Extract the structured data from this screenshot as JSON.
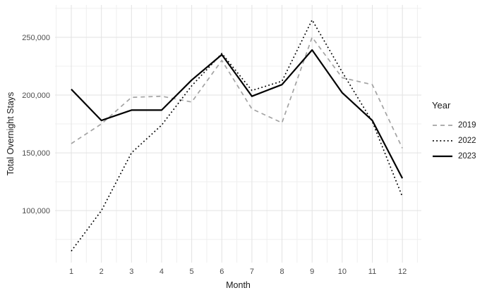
{
  "chart_data": {
    "type": "line",
    "title": "",
    "xlabel": "Month",
    "ylabel": "Total Overnight Stays",
    "legend_title": "Year",
    "legend_position": "right",
    "grid": true,
    "x": [
      1,
      2,
      3,
      4,
      5,
      6,
      7,
      8,
      9,
      10,
      11,
      12
    ],
    "x_tick_labels": [
      "1",
      "2",
      "3",
      "4",
      "5",
      "6",
      "7",
      "8",
      "9",
      "10",
      "11",
      "12"
    ],
    "xlim": [
      0.46,
      12.63
    ],
    "ylim": [
      55000,
      278000
    ],
    "y_major_ticks": [
      100000,
      150000,
      200000,
      250000
    ],
    "y_tick_labels": [
      "100,000",
      "150,000",
      "200,000",
      "250,000"
    ],
    "y_minor_ticks": [
      75000,
      125000,
      175000,
      225000,
      275000
    ],
    "colors": {
      "grid_major": "#e2e2e2",
      "grid_minor": "#efefef",
      "tick_label": "#4d4d4d",
      "series_2019": "#a3a3a3",
      "series_2022": "#000000",
      "series_2023": "#000000"
    },
    "series": [
      {
        "name": "2019",
        "linetype": "dashed",
        "color": "#a3a3a3",
        "values": [
          158000,
          175000,
          198000,
          199000,
          194000,
          230000,
          188000,
          176000,
          250000,
          215000,
          209000,
          154000
        ]
      },
      {
        "name": "2022",
        "linetype": "dotted",
        "color": "#000000",
        "values": [
          65000,
          100000,
          150000,
          174000,
          208000,
          236000,
          204000,
          212000,
          265000,
          220000,
          177000,
          112000
        ]
      },
      {
        "name": "2023",
        "linetype": "solid",
        "color": "#000000",
        "values": [
          205000,
          178000,
          187000,
          187000,
          213000,
          235000,
          199000,
          209000,
          239000,
          202000,
          178000,
          128000
        ]
      }
    ]
  }
}
